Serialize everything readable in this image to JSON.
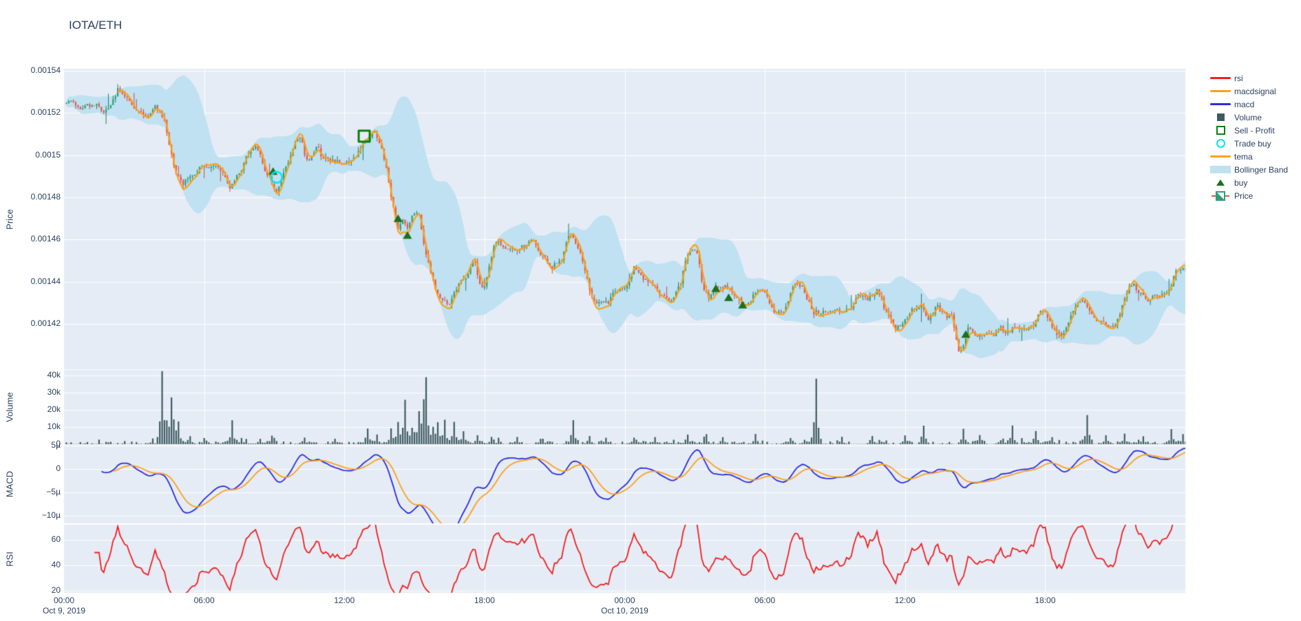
{
  "title": "IOTA/ETH",
  "axes": {
    "price": "Price",
    "volume": "Volume",
    "macd": "MACD",
    "rsi": "RSI"
  },
  "legend": {
    "items": [
      {
        "label": "rsi",
        "symbol": "line",
        "color": "#f21d1d"
      },
      {
        "label": "macdsignal",
        "symbol": "line",
        "color": "#fca119"
      },
      {
        "label": "macd",
        "symbol": "line",
        "color": "#2b2be2"
      },
      {
        "label": "Volume",
        "symbol": "square-fill",
        "color": "#3e5a60"
      },
      {
        "label": "Sell - Profit",
        "symbol": "square-open",
        "color": "#0a7d0a"
      },
      {
        "label": "Trade buy",
        "symbol": "circle-open",
        "color": "#00e5ff"
      },
      {
        "label": "tema",
        "symbol": "line",
        "color": "#fca119"
      },
      {
        "label": "Bollinger Band",
        "symbol": "band",
        "color": "#bfe1f1"
      },
      {
        "label": "buy",
        "symbol": "triangle",
        "color": "#1e6f1e"
      },
      {
        "label": "Price",
        "symbol": "candle",
        "color": "#2aa07a"
      }
    ]
  },
  "colors": {
    "text": "#2a3f5f",
    "plot_bg": "#e5ecf6",
    "grid": "#ffffff",
    "candle_up": "#2aa07a",
    "candle_up_line": "#1f7d5e",
    "candle_down": "#e8554d",
    "candle_down_line": "#cc4640",
    "tema": "#fca119",
    "macd": "#2b2be2",
    "macdsignal": "#fca119",
    "rsi": "#f21d1d",
    "volume": "#3e5a60",
    "bollinger": "#bfe1f1",
    "buy": "#1e6f1e",
    "sell_profit": "#0a7d0a",
    "trade_buy": "#00e5ff"
  },
  "ticks": {
    "price": [
      {
        "label": "0.00154",
        "value": 0.00154
      },
      {
        "label": "0.00152",
        "value": 0.00152
      },
      {
        "label": "0.0015",
        "value": 0.0015
      },
      {
        "label": "0.00148",
        "value": 0.00148
      },
      {
        "label": "0.00146",
        "value": 0.00146
      },
      {
        "label": "0.00144",
        "value": 0.00144
      },
      {
        "label": "0.00142",
        "value": 0.00142
      }
    ],
    "volume": [
      {
        "label": "40k",
        "value": 40000
      },
      {
        "label": "30k",
        "value": 30000
      },
      {
        "label": "20k",
        "value": 20000
      },
      {
        "label": "10k",
        "value": 10000
      },
      {
        "label": "0",
        "value": 0
      }
    ],
    "macd": [
      {
        "label": "5µ",
        "value": 5e-06
      },
      {
        "label": "0",
        "value": 0
      },
      {
        "label": "−5µ",
        "value": -5e-06
      },
      {
        "label": "−10µ",
        "value": -1e-05
      }
    ],
    "rsi": [
      {
        "label": "60",
        "value": 60
      },
      {
        "label": "40",
        "value": 40
      },
      {
        "label": "20",
        "value": 20
      }
    ],
    "x": [
      {
        "label": "00:00",
        "t": 0,
        "date": "Oct 9, 2019"
      },
      {
        "label": "06:00",
        "t": 6
      },
      {
        "label": "12:00",
        "t": 12
      },
      {
        "label": "18:00",
        "t": 18
      },
      {
        "label": "00:00",
        "t": 24,
        "date": "Oct 10, 2019"
      },
      {
        "label": "06:00",
        "t": 30
      },
      {
        "label": "12:00",
        "t": 36
      },
      {
        "label": "18:00",
        "t": 42
      }
    ]
  },
  "chart_data": {
    "type": "candlestick",
    "title": "IOTA/ETH",
    "x_range_hours": 48,
    "interval_minutes": 6,
    "price_unit": 1e-06,
    "panel_ranges": {
      "price": [
        0.0013984,
        0.001541
      ],
      "volume": [
        0,
        43200
      ],
      "macd": [
        -1.17e-05,
        5.2e-06
      ],
      "rsi": [
        18.4,
        71.9
      ]
    },
    "indicators": {
      "tema": "TEMA(8) of close",
      "bollinger": "SMA(20) ± 2σ",
      "macd": "EMA(12) − EMA(26)",
      "macdsignal": "EMA(9) of macd",
      "rsi": "RSI(14)"
    },
    "price_keyframes": [
      [
        0,
        1521
      ],
      [
        0.4,
        1522
      ],
      [
        0.8,
        1521
      ],
      [
        1.2,
        1523
      ],
      [
        1.6,
        1525
      ],
      [
        2.0,
        1529
      ],
      [
        2.3,
        1531
      ],
      [
        2.6,
        1524
      ],
      [
        2.9,
        1522
      ],
      [
        3.2,
        1521
      ],
      [
        3.6,
        1519
      ],
      [
        3.9,
        1521
      ],
      [
        4.15,
        1519
      ],
      [
        4.35,
        1513
      ],
      [
        4.6,
        1503
      ],
      [
        4.85,
        1492
      ],
      [
        5.1,
        1490
      ],
      [
        5.4,
        1493
      ],
      [
        5.8,
        1494
      ],
      [
        6.2,
        1495
      ],
      [
        6.5,
        1497
      ],
      [
        6.8,
        1494
      ],
      [
        7.05,
        1488
      ],
      [
        7.4,
        1492
      ],
      [
        7.8,
        1495
      ],
      [
        8.15,
        1499
      ],
      [
        8.35,
        1500
      ],
      [
        8.6,
        1496
      ],
      [
        8.85,
        1493
      ],
      [
        9.1,
        1489
      ],
      [
        9.35,
        1493
      ],
      [
        9.7,
        1497
      ],
      [
        10.0,
        1502
      ],
      [
        10.15,
        1504
      ],
      [
        10.35,
        1493
      ],
      [
        10.6,
        1497
      ],
      [
        10.85,
        1501
      ],
      [
        11.1,
        1496
      ],
      [
        11.4,
        1494
      ],
      [
        11.7,
        1495
      ],
      [
        12.0,
        1497
      ],
      [
        12.3,
        1500
      ],
      [
        12.6,
        1505
      ],
      [
        12.85,
        1509
      ],
      [
        13.05,
        1507
      ],
      [
        13.3,
        1509
      ],
      [
        13.55,
        1502
      ],
      [
        13.8,
        1493
      ],
      [
        14.05,
        1480
      ],
      [
        14.3,
        1468
      ],
      [
        14.5,
        1471
      ],
      [
        14.7,
        1462
      ],
      [
        14.95,
        1466
      ],
      [
        15.2,
        1467
      ],
      [
        15.5,
        1456
      ],
      [
        15.8,
        1448
      ],
      [
        16.1,
        1440
      ],
      [
        16.45,
        1431
      ],
      [
        16.8,
        1437
      ],
      [
        17.2,
        1444
      ],
      [
        17.55,
        1456
      ],
      [
        17.95,
        1440
      ],
      [
        18.4,
        1455
      ],
      [
        18.8,
        1459
      ],
      [
        19.2,
        1461
      ],
      [
        19.7,
        1452
      ],
      [
        20.1,
        1459
      ],
      [
        20.5,
        1456
      ],
      [
        20.9,
        1444
      ],
      [
        21.3,
        1446
      ],
      [
        21.65,
        1460
      ],
      [
        21.95,
        1450
      ],
      [
        22.3,
        1445
      ],
      [
        22.6,
        1438
      ],
      [
        23.0,
        1435
      ],
      [
        23.3,
        1431
      ],
      [
        23.7,
        1442
      ],
      [
        24.0,
        1444
      ],
      [
        24.4,
        1447
      ],
      [
        24.8,
        1439
      ],
      [
        25.3,
        1438
      ],
      [
        25.9,
        1440
      ],
      [
        26.4,
        1444
      ],
      [
        26.6,
        1450
      ],
      [
        27.1,
        1450
      ],
      [
        27.35,
        1437
      ],
      [
        27.65,
        1434
      ],
      [
        27.9,
        1437
      ],
      [
        28.2,
        1433
      ],
      [
        28.5,
        1430
      ],
      [
        28.8,
        1428
      ],
      [
        29.2,
        1429
      ],
      [
        29.55,
        1436
      ],
      [
        30.1,
        1436
      ],
      [
        30.5,
        1431
      ],
      [
        30.9,
        1428
      ],
      [
        31.3,
        1433
      ],
      [
        31.7,
        1431
      ],
      [
        32.1,
        1426
      ],
      [
        32.7,
        1429
      ],
      [
        33.3,
        1433
      ],
      [
        34.0,
        1437
      ],
      [
        34.4,
        1433
      ],
      [
        34.8,
        1435
      ],
      [
        35.15,
        1424
      ],
      [
        35.6,
        1425
      ],
      [
        36.0,
        1430
      ],
      [
        36.4,
        1434
      ],
      [
        36.7,
        1438
      ],
      [
        37.0,
        1433
      ],
      [
        37.35,
        1436
      ],
      [
        37.75,
        1429
      ],
      [
        38.0,
        1431
      ],
      [
        38.3,
        1411
      ],
      [
        38.5,
        1409
      ],
      [
        38.75,
        1416
      ],
      [
        39.05,
        1411
      ],
      [
        39.4,
        1413
      ],
      [
        39.8,
        1414
      ],
      [
        40.05,
        1421
      ],
      [
        40.4,
        1417
      ],
      [
        40.9,
        1418
      ],
      [
        41.2,
        1421
      ],
      [
        41.5,
        1420
      ],
      [
        41.9,
        1424
      ],
      [
        42.3,
        1425
      ],
      [
        42.8,
        1427
      ],
      [
        43.3,
        1428
      ],
      [
        43.7,
        1430
      ],
      [
        44.2,
        1428
      ],
      [
        44.6,
        1430
      ],
      [
        44.9,
        1432
      ],
      [
        45.3,
        1436
      ],
      [
        45.6,
        1437
      ],
      [
        46.0,
        1431
      ],
      [
        46.35,
        1430
      ],
      [
        46.7,
        1434
      ],
      [
        47.0,
        1437
      ],
      [
        47.35,
        1443
      ],
      [
        47.6,
        1449
      ],
      [
        47.8,
        1447
      ],
      [
        48,
        1444
      ]
    ],
    "volume_spikes": [
      [
        4.13,
        41000
      ],
      [
        4.3,
        8000
      ],
      [
        4.47,
        24500
      ],
      [
        4.62,
        6500
      ],
      [
        4.8,
        11000
      ],
      [
        5.3,
        4500
      ],
      [
        5.9,
        3000
      ],
      [
        7.08,
        13000
      ],
      [
        7.5,
        3500
      ],
      [
        8.3,
        3000
      ],
      [
        8.8,
        4500
      ],
      [
        10.2,
        3500
      ],
      [
        11.5,
        3000
      ],
      [
        12.85,
        9000
      ],
      [
        13.3,
        5500
      ],
      [
        13.9,
        8000
      ],
      [
        14.2,
        12000
      ],
      [
        14.5,
        25500
      ],
      [
        14.75,
        9500
      ],
      [
        15.05,
        17000
      ],
      [
        15.25,
        13500
      ],
      [
        15.42,
        35500
      ],
      [
        15.7,
        8500
      ],
      [
        15.95,
        12000
      ],
      [
        16.2,
        13500
      ],
      [
        16.6,
        12500
      ],
      [
        17.0,
        6500
      ],
      [
        17.6,
        5000
      ],
      [
        18.2,
        4000
      ],
      [
        19.3,
        3500
      ],
      [
        20.3,
        3000
      ],
      [
        21.7,
        13500
      ],
      [
        22.35,
        4500
      ],
      [
        23.1,
        3500
      ],
      [
        24.3,
        3000
      ],
      [
        25.2,
        4000
      ],
      [
        26.6,
        5500
      ],
      [
        27.4,
        4500
      ],
      [
        28.1,
        4000
      ],
      [
        29.5,
        3500
      ],
      [
        31.0,
        3500
      ],
      [
        32.1,
        38000
      ],
      [
        33.2,
        3000
      ],
      [
        34.5,
        4500
      ],
      [
        35.9,
        5000
      ],
      [
        36.7,
        10500
      ],
      [
        38.4,
        8500
      ],
      [
        39.1,
        4500
      ],
      [
        40.1,
        3000
      ],
      [
        40.5,
        9000
      ],
      [
        41.5,
        7500
      ],
      [
        42.2,
        4000
      ],
      [
        43.7,
        15500
      ],
      [
        44.5,
        4500
      ],
      [
        45.3,
        6000
      ],
      [
        46.1,
        4500
      ],
      [
        47.3,
        7000
      ],
      [
        47.8,
        5500
      ]
    ],
    "markers": {
      "trade_buy": [
        [
          9.1,
          1489.5
        ]
      ],
      "buy": [
        [
          8.95,
          1492.3
        ],
        [
          14.3,
          1470.0
        ],
        [
          14.7,
          1462.0
        ],
        [
          27.9,
          1436.8
        ],
        [
          28.45,
          1432.5
        ],
        [
          29.05,
          1429.0
        ],
        [
          38.6,
          1415.0
        ]
      ],
      "sell_profit": [
        [
          12.85,
          1509.0
        ]
      ]
    },
    "seed": 11
  }
}
